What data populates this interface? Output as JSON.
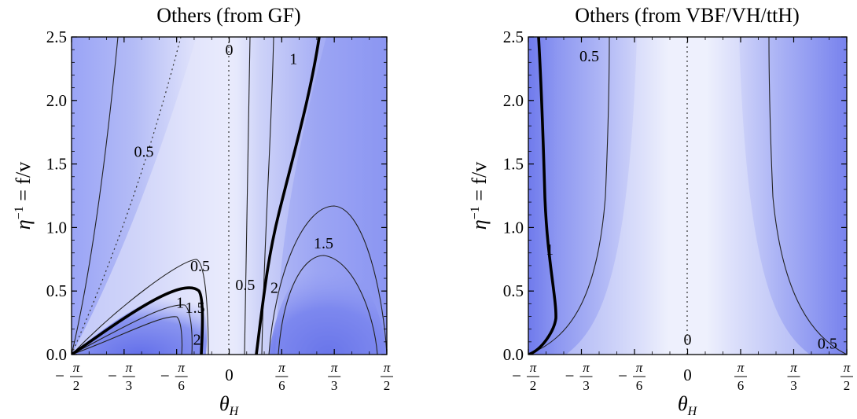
{
  "chart_data": [
    {
      "type": "heatmap",
      "title": "Others (from GF)",
      "xlabel": "θ",
      "xlabel_sub": "H",
      "ylabel": "η",
      "ylabel_sup": "−1",
      "ylabel_rest": " = f/v",
      "xlim": [
        -1.5708,
        1.5708
      ],
      "ylim": [
        0,
        2.5
      ],
      "x_ticks": [
        {
          "value": -1.5708,
          "sign": "−",
          "label": "π",
          "den": "2"
        },
        {
          "value": -1.0472,
          "sign": "−",
          "label": "π",
          "den": "3"
        },
        {
          "value": -0.5236,
          "sign": "−",
          "label": "π",
          "den": "6"
        },
        {
          "value": 0,
          "sign": "",
          "label": "0",
          "den": ""
        },
        {
          "value": 0.5236,
          "sign": "",
          "label": "π",
          "den": "6"
        },
        {
          "value": 1.0472,
          "sign": "",
          "label": "π",
          "den": "3"
        },
        {
          "value": 1.5708,
          "sign": "",
          "label": "π",
          "den": "2"
        }
      ],
      "y_ticks": [
        "0.0",
        "0.5",
        "1.0",
        "1.5",
        "2.0",
        "2.5"
      ],
      "contour_labels": [
        {
          "text": "0",
          "x": 0.0,
          "y": 2.4
        },
        {
          "text": "1",
          "x": 0.64,
          "y": 2.33
        },
        {
          "text": "0.5",
          "x": -0.85,
          "y": 1.6
        },
        {
          "text": "0.5",
          "x": -0.29,
          "y": 0.7
        },
        {
          "text": "1",
          "x": -0.49,
          "y": 0.41
        },
        {
          "text": "1.5",
          "x": -0.34,
          "y": 0.37
        },
        {
          "text": "2",
          "x": -0.32,
          "y": 0.12
        },
        {
          "text": "0.5",
          "x": 0.16,
          "y": 0.55
        },
        {
          "text": "2",
          "x": 0.45,
          "y": 0.53
        },
        {
          "text": "1.5",
          "x": 0.94,
          "y": 0.88
        }
      ]
    },
    {
      "type": "heatmap",
      "title": "Others (from VBF/VH/ttH)",
      "xlabel": "θ",
      "xlabel_sub": "H",
      "ylabel": "η",
      "ylabel_sup": "−1",
      "ylabel_rest": " = f/v",
      "xlim": [
        -1.5708,
        1.5708
      ],
      "ylim": [
        0,
        2.5
      ],
      "x_ticks": [
        {
          "value": -1.5708,
          "sign": "−",
          "label": "π",
          "den": "2"
        },
        {
          "value": -1.0472,
          "sign": "−",
          "label": "π",
          "den": "3"
        },
        {
          "value": -0.5236,
          "sign": "−",
          "label": "π",
          "den": "6"
        },
        {
          "value": 0,
          "sign": "",
          "label": "0",
          "den": ""
        },
        {
          "value": 0.5236,
          "sign": "",
          "label": "π",
          "den": "6"
        },
        {
          "value": 1.0472,
          "sign": "",
          "label": "π",
          "den": "3"
        },
        {
          "value": 1.5708,
          "sign": "",
          "label": "π",
          "den": "2"
        }
      ],
      "y_ticks": [
        "0.0",
        "0.5",
        "1.0",
        "1.5",
        "2.0",
        "2.5"
      ],
      "contour_labels": [
        {
          "text": "0.5",
          "x": -0.97,
          "y": 2.35
        },
        {
          "text": "1",
          "x": -1.36,
          "y": 0.83
        },
        {
          "text": "0",
          "x": 0.0,
          "y": 0.12
        },
        {
          "text": "0.5",
          "x": 1.38,
          "y": 0.09
        }
      ]
    }
  ]
}
